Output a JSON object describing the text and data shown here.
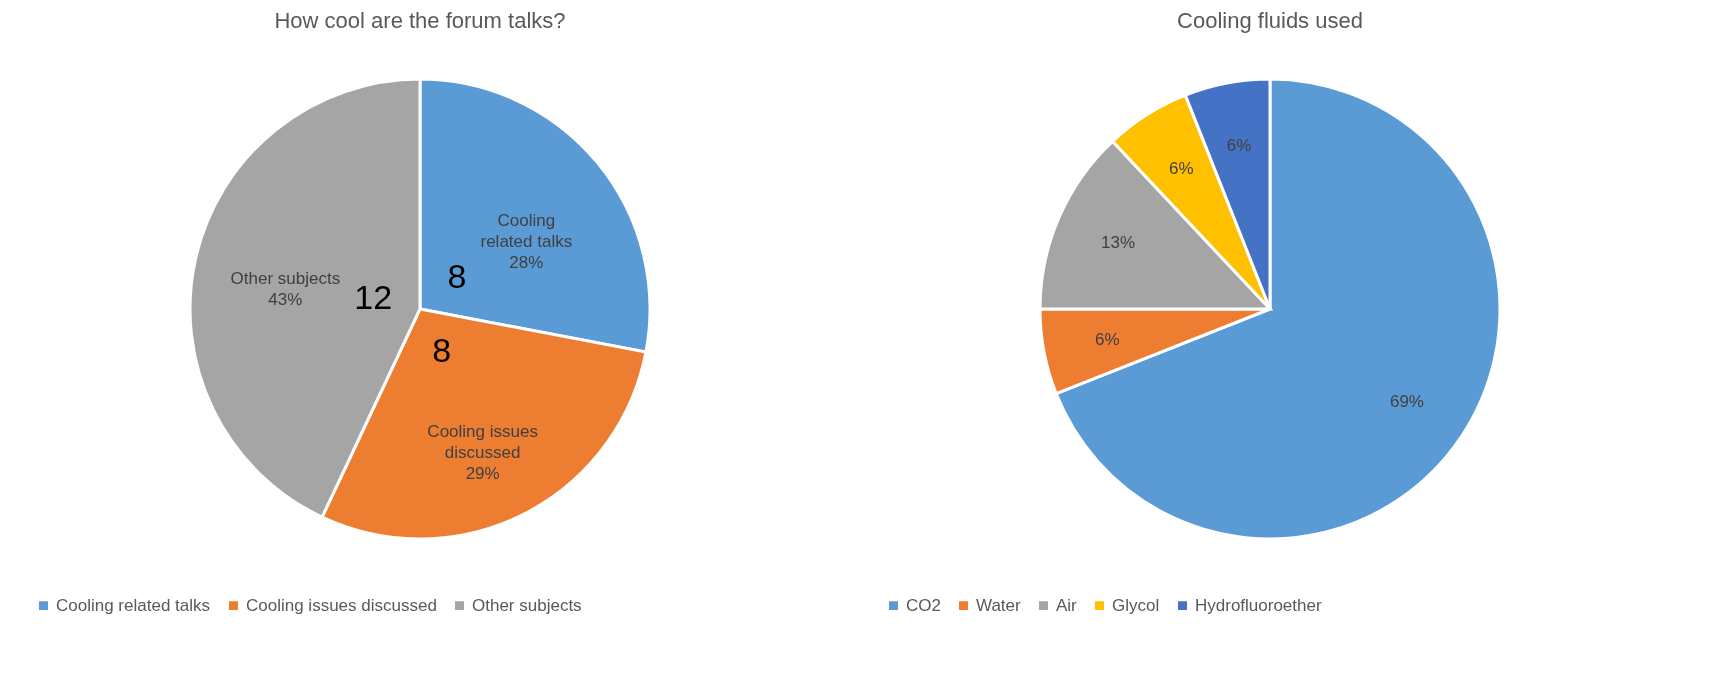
{
  "chart_data": [
    {
      "type": "pie",
      "title": "How cool are the forum talks?",
      "categories": [
        "Cooling related talks",
        "Cooling issues discussed",
        "Other subjects"
      ],
      "values": [
        28,
        29,
        43
      ],
      "colors": [
        "#5b9bd5",
        "#ed7d31",
        "#a5a5a5"
      ],
      "annotations": [
        {
          "text": "8",
          "x": "Cooling related talks"
        },
        {
          "text": "8",
          "x": "Cooling issues discussed"
        },
        {
          "text": "12",
          "x": "Other subjects"
        }
      ],
      "value_labels": [
        "Cooling\nrelated talks\n28%",
        "Cooling issues\ndiscussed\n29%",
        "Other subjects\n43%"
      ],
      "legend": "bottom"
    },
    {
      "type": "pie",
      "title": "Cooling fluids used",
      "categories": [
        "CO2",
        "Water",
        "Air",
        "Glycol",
        "Hydrofluoroether"
      ],
      "values": [
        69,
        6,
        13,
        6,
        6
      ],
      "colors": [
        "#5b9bd5",
        "#ed7d31",
        "#a5a5a5",
        "#ffc000",
        "#4472c4"
      ],
      "value_labels": [
        "69%",
        "6%",
        "13%",
        "6%",
        "6%"
      ],
      "legend": "bottom"
    }
  ]
}
